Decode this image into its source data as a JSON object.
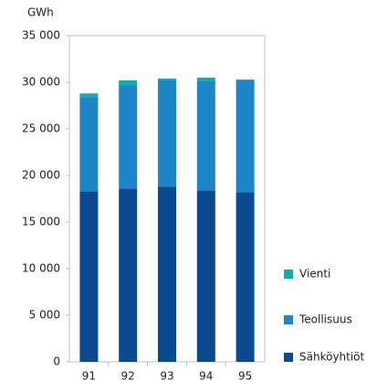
{
  "chart_data": {
    "type": "bar",
    "stacked": true,
    "y_label": "GWh",
    "categories": [
      "91",
      "92",
      "93",
      "94",
      "95"
    ],
    "series": [
      {
        "name": "Sähköyhtiöt",
        "color": "#0b4a8f",
        "values": [
          18300,
          18600,
          18800,
          18400,
          18200
        ]
      },
      {
        "name": "Teollisuus",
        "color": "#1c86c8",
        "values": [
          10100,
          11100,
          11400,
          11700,
          12000
        ]
      },
      {
        "name": "Vienti",
        "color": "#17a9b3",
        "values": [
          400,
          500,
          200,
          400,
          100
        ]
      }
    ],
    "ylim": [
      0,
      35000
    ],
    "yticks": [
      0,
      {
        "value": 5000,
        "label": "5 000"
      },
      {
        "value": 10000,
        "label": "10 000"
      },
      {
        "value": 15000,
        "label": "15 000"
      },
      {
        "value": 20000,
        "label": "20 000"
      },
      {
        "value": 25000,
        "label": "25 000"
      },
      {
        "value": 30000,
        "label": "30 000"
      },
      {
        "value": 35000,
        "label": "35 000"
      }
    ],
    "grid": false,
    "legend": "right"
  }
}
